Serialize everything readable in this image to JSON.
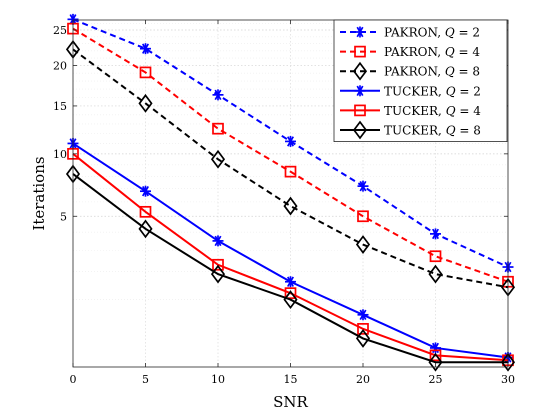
{
  "chart_data": {
    "type": "line",
    "xlabel": "SNR",
    "ylabel": "Iterations",
    "x": [
      0,
      5,
      10,
      15,
      20,
      25,
      30
    ],
    "xlim": [
      0,
      30
    ],
    "ylim": [
      0,
      26.5
    ],
    "y_scale": "sqrt",
    "xticks": [
      "0",
      "5",
      "10",
      "15",
      "20",
      "25",
      "30"
    ],
    "yticks": [
      {
        "value": 5,
        "label": "5"
      },
      {
        "value": 10,
        "label": "10"
      },
      {
        "value": 15,
        "label": "15"
      },
      {
        "value": 20,
        "label": "20"
      },
      {
        "value": 25,
        "label": "25"
      }
    ],
    "grid": true,
    "legend_position": "top-right",
    "series": [
      {
        "name": "PAKRON, Q = 2",
        "name_prefix": "PAKRON, ",
        "name_var": "Q",
        "name_val": " = 2",
        "color": "#0000ff",
        "dash": "dashed",
        "marker": "asterisk",
        "values": [
          26.6,
          22.3,
          16.3,
          11.2,
          7.2,
          3.9,
          2.2
        ]
      },
      {
        "name": "PAKRON, Q = 4",
        "name_prefix": "PAKRON, ",
        "name_var": "Q",
        "name_val": " = 4",
        "color": "#ff0000",
        "dash": "dashed",
        "marker": "square",
        "values": [
          25.2,
          19.1,
          12.5,
          8.4,
          5.0,
          2.7,
          1.6
        ]
      },
      {
        "name": "PAKRON, Q = 8",
        "name_prefix": "PAKRON, ",
        "name_var": "Q",
        "name_val": " = 8",
        "color": "#000000",
        "dash": "dashed",
        "marker": "diamond",
        "values": [
          22.2,
          15.3,
          9.5,
          5.7,
          3.3,
          1.9,
          1.4
        ]
      },
      {
        "name": "TUCKER, Q = 2",
        "name_prefix": "TUCKER, ",
        "name_var": "Q",
        "name_val": " = 2",
        "color": "#0000ff",
        "dash": "solid",
        "marker": "asterisk",
        "values": [
          11.0,
          6.8,
          3.5,
          1.6,
          0.6,
          0.08,
          0.02
        ]
      },
      {
        "name": "TUCKER, Q = 4",
        "name_prefix": "TUCKER, ",
        "name_var": "Q",
        "name_val": " = 4",
        "color": "#ff0000",
        "dash": "solid",
        "marker": "square",
        "values": [
          10.0,
          5.3,
          2.3,
          1.2,
          0.32,
          0.03,
          0.01
        ]
      },
      {
        "name": "TUCKER, Q = 8",
        "name_prefix": "TUCKER, ",
        "name_var": "Q",
        "name_val": " = 8",
        "color": "#000000",
        "dash": "solid",
        "marker": "diamond",
        "values": [
          8.2,
          4.2,
          1.9,
          1.0,
          0.18,
          0.005,
          0.005
        ]
      }
    ]
  }
}
